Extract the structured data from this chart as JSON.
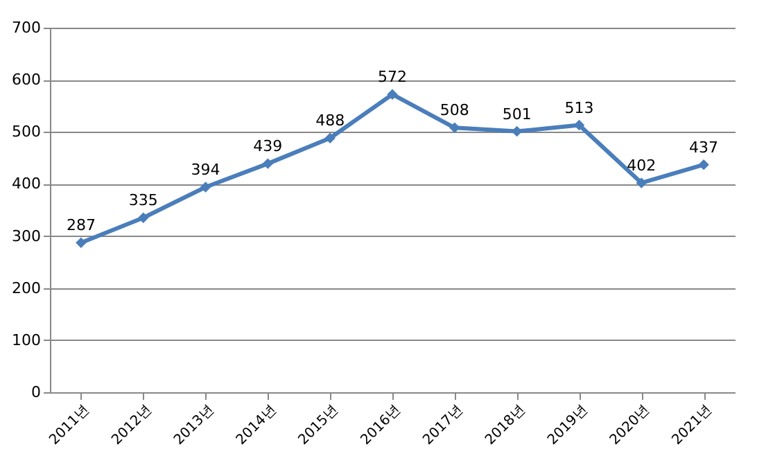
{
  "chart_data": {
    "type": "line",
    "categories": [
      "2011년",
      "2012년",
      "2013년",
      "2014년",
      "2015년",
      "2016년",
      "2017년",
      "2018년",
      "2019년",
      "2020년",
      "2021년"
    ],
    "series": [
      {
        "color": "#4a7ebb",
        "values": [
          287,
          335,
          394,
          439,
          488,
          572,
          508,
          501,
          513,
          402,
          437
        ]
      }
    ],
    "ylim": [
      0,
      700
    ],
    "yticks": [
      0,
      100,
      200,
      300,
      400,
      500,
      600,
      700
    ],
    "grid": "y",
    "marker": "diamond",
    "data_labels": true
  }
}
